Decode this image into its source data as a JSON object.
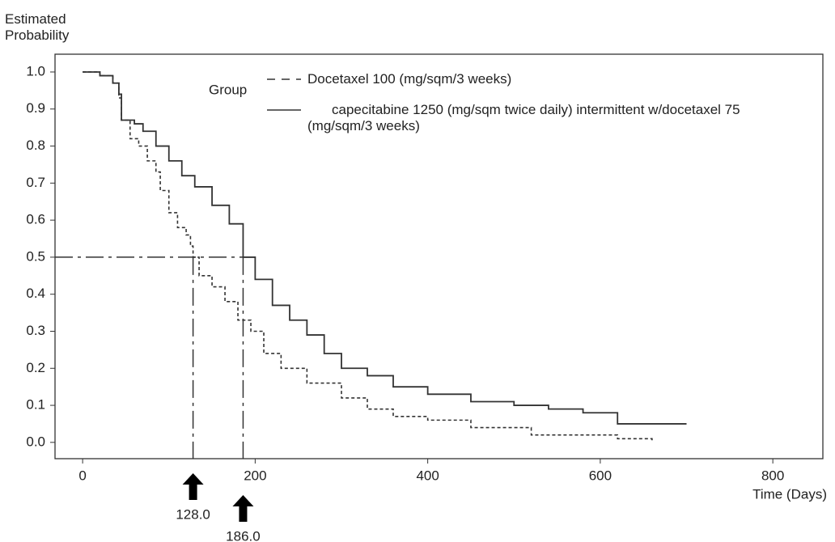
{
  "chart_data": {
    "type": "step",
    "y_label": "Estimated Probability",
    "x_label": "Time (Days)",
    "legend_title": "Group",
    "xlim": [
      -32,
      858
    ],
    "ylim": [
      -0.044,
      1.048
    ],
    "xticks": [
      0,
      200,
      400,
      600,
      800
    ],
    "yticks": [
      {
        "value": 0,
        "label": "0.0"
      },
      0.1,
      0.2,
      0.3,
      0.4,
      0.5,
      0.6,
      0.7,
      0.8,
      0.9,
      {
        "value": 1,
        "label": "1.0"
      }
    ],
    "reference_y": 0.5,
    "annotations": [
      {
        "value": 128,
        "label": "128.0"
      },
      {
        "value": 186,
        "label": "186.0"
      }
    ],
    "series": [
      {
        "name": "Docetaxel 100 (mg/sqm/3 weeks)",
        "color": "#333333",
        "style": "dashed",
        "x": [
          0,
          20,
          35,
          42,
          45,
          55,
          65,
          75,
          85,
          90,
          100,
          110,
          120,
          125,
          128,
          135,
          150,
          165,
          180,
          195,
          210,
          230,
          260,
          300,
          330,
          360,
          400,
          450,
          520,
          580,
          620,
          660
        ],
        "values": [
          1.0,
          0.99,
          0.97,
          0.93,
          0.87,
          0.82,
          0.8,
          0.76,
          0.73,
          0.68,
          0.62,
          0.58,
          0.56,
          0.53,
          0.5,
          0.45,
          0.42,
          0.38,
          0.33,
          0.3,
          0.24,
          0.2,
          0.16,
          0.12,
          0.09,
          0.07,
          0.06,
          0.04,
          0.02,
          0.02,
          0.01,
          0.005
        ]
      },
      {
        "name": "capecitabine 1250 (mg/sqm twice daily) intermittent w/docetaxel 75 (mg/sqm/3 weeks)",
        "color": "#333333",
        "style": "solid",
        "x": [
          0,
          20,
          35,
          42,
          45,
          60,
          70,
          85,
          100,
          115,
          130,
          150,
          170,
          186,
          200,
          220,
          240,
          260,
          280,
          300,
          330,
          360,
          400,
          450,
          500,
          540,
          580,
          620,
          700
        ],
        "values": [
          1.0,
          0.99,
          0.97,
          0.94,
          0.87,
          0.86,
          0.84,
          0.8,
          0.76,
          0.72,
          0.69,
          0.64,
          0.59,
          0.5,
          0.44,
          0.37,
          0.33,
          0.29,
          0.24,
          0.2,
          0.18,
          0.15,
          0.13,
          0.11,
          0.1,
          0.09,
          0.08,
          0.05,
          0.05
        ]
      }
    ]
  }
}
